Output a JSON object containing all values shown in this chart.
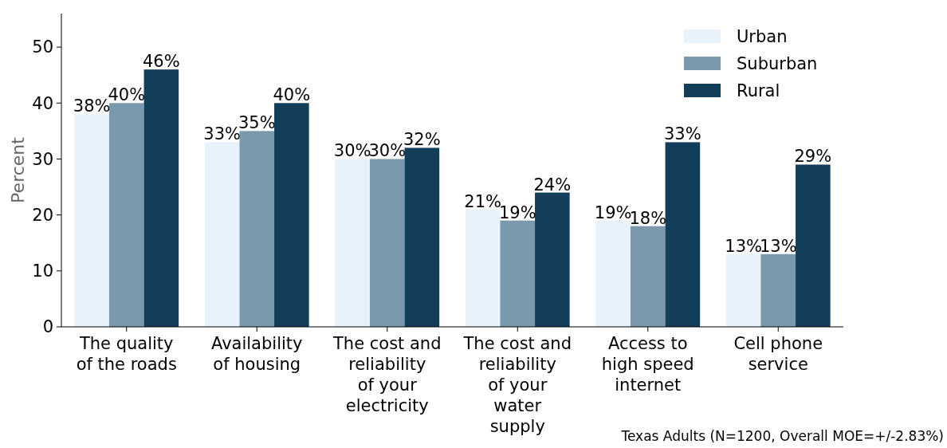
{
  "chart_data": {
    "type": "bar",
    "ylabel": "Percent",
    "categories": [
      "The quality\nof the roads",
      "Availability\nof housing",
      "The cost and\nreliability\nof your\nelectricity",
      "The cost and\nreliability\nof your\nwater\nsupply",
      "Access to\nhigh speed\ninternet",
      "Cell phone\nservice"
    ],
    "series": [
      {
        "name": "Urban",
        "color": "#e8f2fb",
        "values": [
          38,
          33,
          30,
          21,
          19,
          13
        ],
        "value_labels": [
          "38%",
          "33%",
          "30%",
          "21%",
          "19%",
          "13%"
        ]
      },
      {
        "name": "Suburban",
        "color": "#7a99ad",
        "values": [
          40,
          35,
          30,
          19,
          18,
          13
        ],
        "value_labels": [
          "40%",
          "35%",
          "30%",
          "19%",
          "18%",
          "13%"
        ]
      },
      {
        "name": "Rural",
        "color": "#123e5a",
        "values": [
          46,
          40,
          32,
          24,
          33,
          29
        ],
        "value_labels": [
          "46%",
          "40%",
          "32%",
          "24%",
          "33%",
          "29%"
        ]
      }
    ],
    "ylim": [
      0,
      56
    ],
    "yticks": [
      0,
      10,
      20,
      30,
      40,
      50
    ],
    "grid": false,
    "legend": "top right",
    "annotations": [
      "Texas Adults (N=1200, Overall MOE=+/-2.83%)"
    ]
  }
}
